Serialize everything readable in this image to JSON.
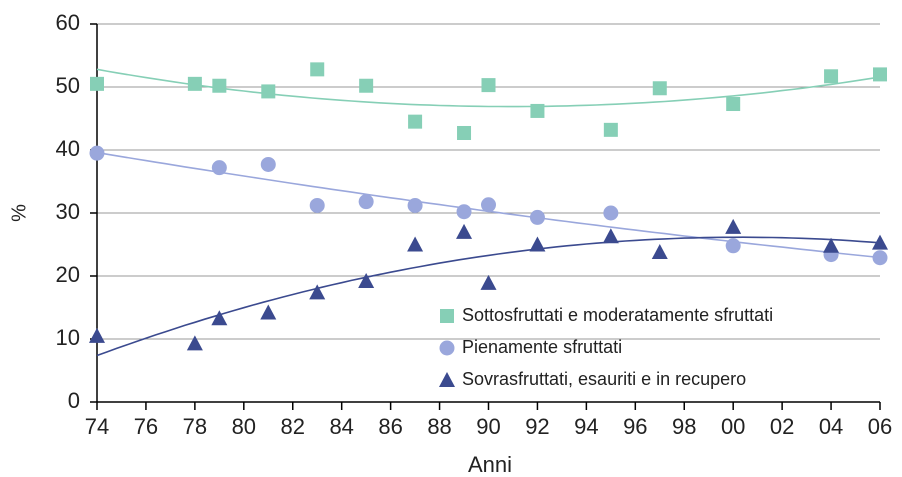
{
  "chart_data": {
    "type": "scatter",
    "x_label": "Anni",
    "y_label": "%",
    "xlim": [
      1974,
      2006
    ],
    "ylim": [
      0,
      60
    ],
    "xticks": [
      {
        "value": 1974,
        "label": "74"
      },
      {
        "value": 1976,
        "label": "76"
      },
      {
        "value": 1978,
        "label": "78"
      },
      {
        "value": 1980,
        "label": "80"
      },
      {
        "value": 1982,
        "label": "82"
      },
      {
        "value": 1984,
        "label": "84"
      },
      {
        "value": 1986,
        "label": "86"
      },
      {
        "value": 1988,
        "label": "88"
      },
      {
        "value": 1990,
        "label": "90"
      },
      {
        "value": 1992,
        "label": "92"
      },
      {
        "value": 1994,
        "label": "94"
      },
      {
        "value": 1996,
        "label": "96"
      },
      {
        "value": 1998,
        "label": "98"
      },
      {
        "value": 2000,
        "label": "00"
      },
      {
        "value": 2002,
        "label": "02"
      },
      {
        "value": 2004,
        "label": "04"
      },
      {
        "value": 2006,
        "label": "06"
      }
    ],
    "yticks": [
      0,
      10,
      20,
      30,
      40,
      50,
      60
    ],
    "grid": true,
    "legend": "lower right",
    "trend": "quadratic",
    "series": [
      {
        "name": "Sottosfruttati e moderatamente sfruttati",
        "color": "#86cfb6",
        "marker": "square",
        "x": [
          1974,
          1978,
          1979,
          1981,
          1983,
          1985,
          1987,
          1989,
          1990,
          1992,
          1995,
          1997,
          2000,
          2004,
          2006
        ],
        "values": [
          50.5,
          50.5,
          50.2,
          49.3,
          52.8,
          50.2,
          44.5,
          42.7,
          50.3,
          46.2,
          43.2,
          49.8,
          47.3,
          51.7,
          52.0
        ]
      },
      {
        "name": "Pienamente sfruttati",
        "color": "#9aa7dc",
        "marker": "circle",
        "x": [
          1974,
          1979,
          1981,
          1983,
          1985,
          1987,
          1989,
          1990,
          1992,
          1995,
          2000,
          2004,
          2006
        ],
        "values": [
          39.5,
          37.2,
          37.7,
          31.2,
          31.8,
          31.2,
          30.2,
          31.3,
          29.3,
          30.0,
          24.8,
          23.4,
          22.9
        ]
      },
      {
        "name": "Sovrasfruttati, esauriti e in recupero",
        "color": "#3b4a8f",
        "marker": "triangle",
        "x": [
          1974,
          1978,
          1979,
          1981,
          1983,
          1985,
          1987,
          1989,
          1990,
          1992,
          1995,
          1997,
          2000,
          2004,
          2006
        ],
        "values": [
          10.5,
          9.3,
          13.3,
          14.2,
          17.4,
          19.2,
          25.0,
          27.0,
          18.9,
          25.0,
          26.3,
          23.8,
          27.8,
          24.8,
          25.3
        ]
      }
    ]
  }
}
